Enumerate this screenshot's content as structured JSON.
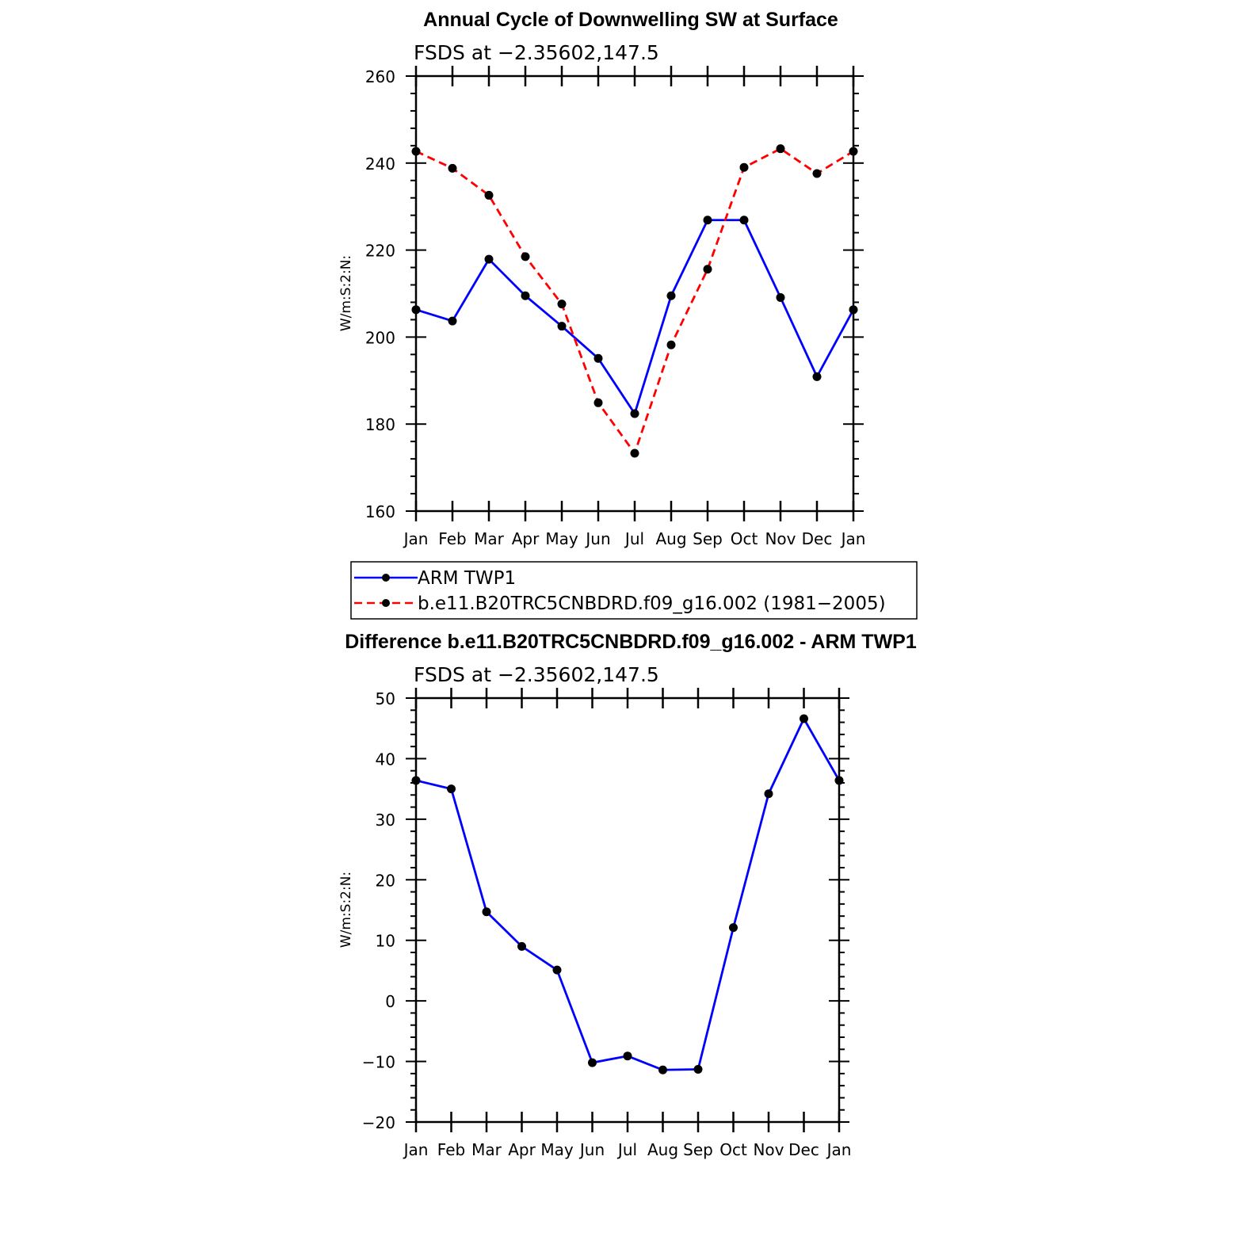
{
  "colors": {
    "blue": "#0000ff",
    "red": "#ff0000",
    "marker": "#000000"
  },
  "chart_data": [
    {
      "type": "line",
      "title": "Annual Cycle of Downwelling SW at Surface",
      "subtitle": "FSDS at −2.35602,147.5",
      "ylabel": "W/m:S:2:N:",
      "xlabel": "",
      "categories": [
        "Jan",
        "Feb",
        "Mar",
        "Apr",
        "May",
        "Jun",
        "Jul",
        "Aug",
        "Sep",
        "Oct",
        "Nov",
        "Dec",
        "Jan"
      ],
      "ylim": [
        160,
        260
      ],
      "yticks": [
        160,
        180,
        200,
        220,
        240,
        260
      ],
      "yticks_text": [
        "160",
        "180",
        "200",
        "220",
        "240",
        "260"
      ],
      "series": [
        {
          "name": "ARM TWP1",
          "color": "#0000ff",
          "dash": "solid",
          "values": [
            206.3,
            203.7,
            217.9,
            209.5,
            202.5,
            195.1,
            182.4,
            209.5,
            226.9,
            226.9,
            209.1,
            190.9,
            206.3
          ]
        },
        {
          "name": "b.e11.B20TRC5CNBDRD.f09_g16.002 (1981−2005)",
          "color": "#ff0000",
          "dash": "dashed",
          "values": [
            242.7,
            238.8,
            232.6,
            218.5,
            207.6,
            184.9,
            173.3,
            198.2,
            215.6,
            239.0,
            243.3,
            237.6,
            242.7
          ]
        }
      ],
      "legend": "below",
      "grid": false
    },
    {
      "type": "line",
      "title": "Difference b.e11.B20TRC5CNBDRD.f09_g16.002 - ARM TWP1",
      "subtitle": "FSDS at −2.35602,147.5",
      "ylabel": "W/m:S:2:N:",
      "xlabel": "",
      "categories": [
        "Jan",
        "Feb",
        "Mar",
        "Apr",
        "May",
        "Jun",
        "Jul",
        "Aug",
        "Sep",
        "Oct",
        "Nov",
        "Dec",
        "Jan"
      ],
      "ylim": [
        -20,
        50
      ],
      "yticks": [
        -20,
        -10,
        0,
        10,
        20,
        30,
        40,
        50
      ],
      "yticks_text": [
        "−20",
        "−10",
        "0",
        "10",
        "20",
        "30",
        "40",
        "50"
      ],
      "series": [
        {
          "color": "#0000ff",
          "dash": "solid",
          "values": [
            36.4,
            35.0,
            14.7,
            9.0,
            5.1,
            -10.2,
            -9.1,
            -11.4,
            -11.3,
            12.1,
            34.2,
            46.6,
            36.4
          ]
        }
      ],
      "grid": false
    }
  ]
}
